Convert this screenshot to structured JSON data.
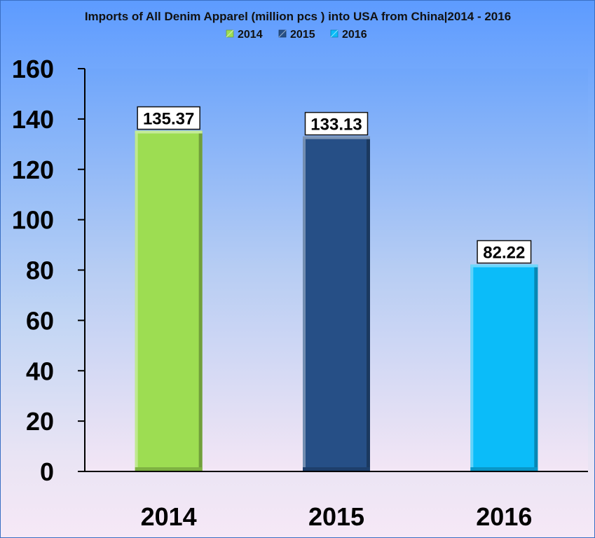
{
  "chart_data": {
    "type": "bar",
    "title": "Imports of All Denim Apparel (million pcs ) into USA from China|2014 - 2016",
    "categories": [
      "2014",
      "2015",
      "2016"
    ],
    "values": [
      135.37,
      133.13,
      82.22
    ],
    "data_labels": [
      "135.37",
      "133.13",
      "82.22"
    ],
    "colors": [
      "#9ddd52",
      "#264f86",
      "#0bbcf9"
    ],
    "legend": [
      {
        "label": "2014",
        "color": "#9ddd52"
      },
      {
        "label": "2015",
        "color": "#264f86"
      },
      {
        "label": "2016",
        "color": "#0bbcf9"
      }
    ],
    "legend_position": "top",
    "xlabel": "",
    "ylabel": "",
    "ylim": [
      0,
      160
    ],
    "yticks": [
      0,
      20,
      40,
      60,
      80,
      100,
      120,
      140,
      160
    ],
    "grid": false
  }
}
